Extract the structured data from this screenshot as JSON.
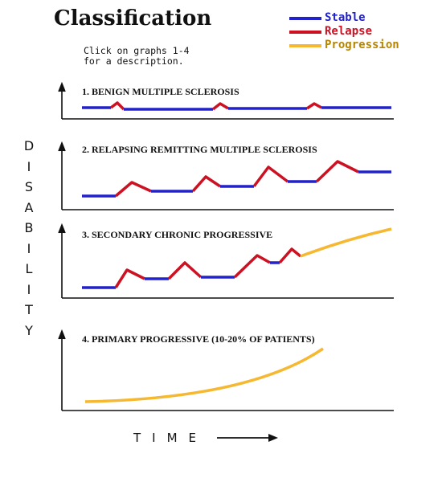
{
  "title": "Classification",
  "instructions": "Click on graphs 1-4\nfor a description.",
  "legend": [
    {
      "label": "Stable",
      "color": "#2222cc"
    },
    {
      "label": "Relapse",
      "color": "#cc1122"
    },
    {
      "label": "Progression",
      "color": "#f5b830"
    }
  ],
  "graphs": [
    {
      "number": 1,
      "title": "1. BENIGN MULTIPLE SCLEROSIS"
    },
    {
      "number": 2,
      "title": "2. RELAPSING REMITTING MULTIPLE SCLEROSIS"
    },
    {
      "number": 3,
      "title": "3. SECONDARY CHRONIC PROGRESSIVE"
    },
    {
      "number": 4,
      "title": "4. PRIMARY PROGRESSIVE  (10-20% OF PATIENTS)"
    }
  ],
  "y_axis_letters": [
    "D",
    "I",
    "S",
    "A",
    "B",
    "I",
    "L",
    "I",
    "T",
    "Y"
  ],
  "x_axis_label": "TIME"
}
